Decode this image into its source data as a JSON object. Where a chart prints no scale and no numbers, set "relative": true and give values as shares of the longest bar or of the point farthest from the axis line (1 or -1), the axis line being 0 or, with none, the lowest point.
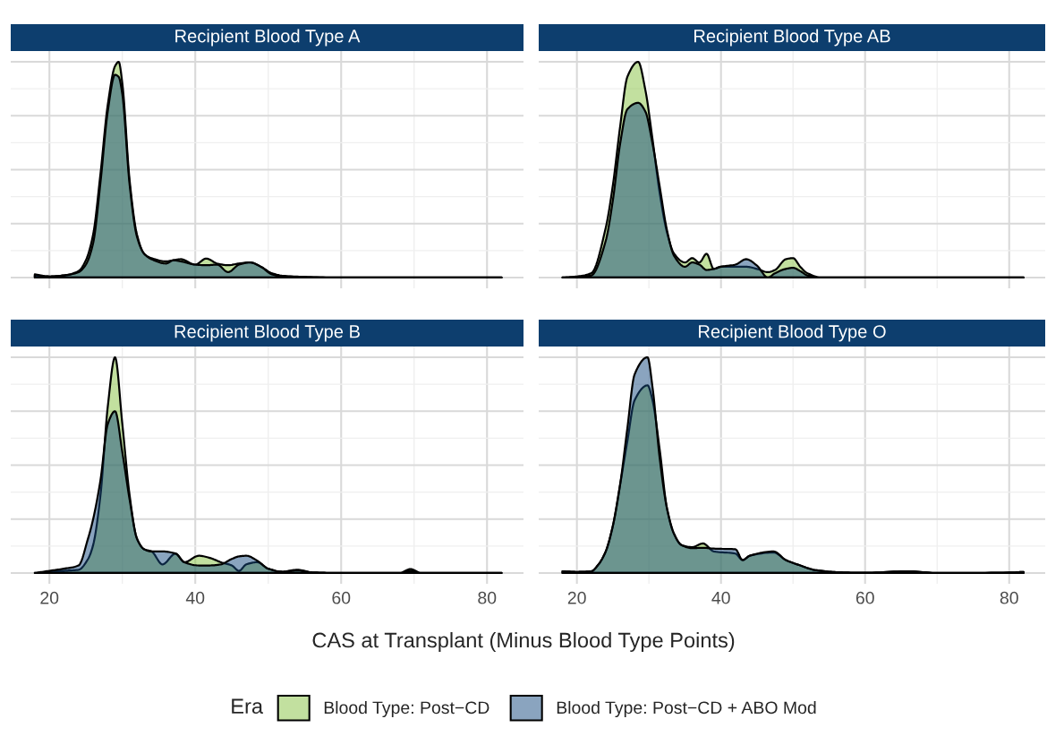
{
  "chart_data": [
    {
      "type": "area",
      "title": "Recipient Blood Type A",
      "relative": true,
      "xlim": [
        14.7,
        85
      ],
      "xticks": [
        20,
        40,
        60,
        80
      ],
      "tick_labels": false,
      "grid": true,
      "legend": "bottom",
      "legend_title": "Era",
      "series": [
        {
          "name": "Blood Type: Post−CD",
          "color": "#85c140",
          "x": [
            18,
            20,
            22,
            24,
            25,
            26,
            27,
            28,
            29,
            29.5,
            30,
            31,
            32,
            33,
            34,
            36,
            37,
            38,
            40,
            41.5,
            43,
            44.5,
            46,
            47.5,
            49,
            50.5,
            52,
            55,
            60,
            70,
            82
          ],
          "values": [
            0.01,
            0.005,
            0.01,
            0.03,
            0.08,
            0.2,
            0.48,
            0.8,
            0.98,
            1.0,
            0.9,
            0.45,
            0.2,
            0.11,
            0.09,
            0.075,
            0.08,
            0.085,
            0.06,
            0.088,
            0.065,
            0.057,
            0.065,
            0.07,
            0.05,
            0.02,
            0.008,
            0.003,
            0,
            0,
            0
          ]
        },
        {
          "name": "Blood Type: Post−CD + ABO Mod",
          "color": "#164a7f",
          "x": [
            18,
            20,
            22,
            24,
            25,
            26,
            27,
            28,
            29,
            29.5,
            30,
            31,
            32,
            33,
            34,
            36,
            37,
            38,
            40,
            41.5,
            43,
            44.5,
            46,
            47.5,
            49,
            50.5,
            52,
            55,
            60,
            70,
            82
          ],
          "values": [
            0.015,
            0.005,
            0.01,
            0.025,
            0.06,
            0.16,
            0.44,
            0.77,
            0.94,
            0.93,
            0.85,
            0.43,
            0.19,
            0.11,
            0.085,
            0.065,
            0.08,
            0.075,
            0.06,
            0.057,
            0.06,
            0.025,
            0.06,
            0.07,
            0.05,
            0.015,
            0.006,
            0.002,
            0,
            0,
            0
          ]
        }
      ]
    },
    {
      "type": "area",
      "title": "Recipient Blood Type AB",
      "relative": true,
      "xlim": [
        14.7,
        85
      ],
      "xticks": [
        20,
        40,
        60,
        80
      ],
      "tick_labels": false,
      "grid": true,
      "legend": "bottom",
      "series": [
        {
          "name": "Blood Type: Post−CD",
          "color": "#85c140",
          "x": [
            18,
            20,
            22,
            24,
            25,
            26,
            27,
            28.5,
            29.5,
            30.5,
            31.5,
            32.5,
            33.5,
            35,
            36,
            37,
            38,
            39,
            40,
            42,
            43.5,
            45,
            46.5,
            47.5,
            49,
            50,
            51,
            52,
            54,
            60,
            70,
            82
          ],
          "values": [
            0,
            0.005,
            0.02,
            0.23,
            0.43,
            0.7,
            0.93,
            1.0,
            0.87,
            0.64,
            0.39,
            0.21,
            0.11,
            0.07,
            0.09,
            0.07,
            0.11,
            0.04,
            0.05,
            0.05,
            0.05,
            0.04,
            0.025,
            0.035,
            0.085,
            0.09,
            0.05,
            0.02,
            0,
            0,
            0,
            0
          ]
        },
        {
          "name": "Blood Type: Post−CD + ABO Mod",
          "color": "#164a7f",
          "x": [
            18,
            20,
            22,
            24,
            25,
            26,
            27,
            28.5,
            29.5,
            30.5,
            31.5,
            32.5,
            33.5,
            35,
            36,
            37,
            38,
            39,
            40,
            42,
            43.5,
            45,
            46.5,
            47.5,
            49,
            50,
            51,
            52,
            54,
            60,
            70,
            82
          ],
          "values": [
            0,
            0.002,
            0.01,
            0.17,
            0.36,
            0.62,
            0.78,
            0.81,
            0.77,
            0.62,
            0.42,
            0.22,
            0.1,
            0.05,
            0.07,
            0.06,
            0.035,
            0.04,
            0.05,
            0.06,
            0.085,
            0.055,
            0.0,
            0.02,
            0.04,
            0.045,
            0.03,
            0.01,
            0,
            0,
            0,
            0
          ]
        }
      ]
    },
    {
      "type": "area",
      "title": "Recipient Blood Type B",
      "relative": true,
      "xlim": [
        14.7,
        85
      ],
      "xticks": [
        20,
        40,
        60,
        80
      ],
      "tick_labels": "x",
      "grid": true,
      "legend": "bottom",
      "series": [
        {
          "name": "Blood Type: Post−CD",
          "color": "#85c140",
          "x": [
            18,
            20,
            22,
            24,
            25.3,
            26,
            27,
            28,
            29,
            30,
            31,
            32,
            33,
            34,
            35.5,
            37.3,
            38.5,
            40.5,
            42,
            43.5,
            45,
            46,
            47,
            48.5,
            50,
            52,
            54,
            56,
            60,
            68,
            69.5,
            71,
            82
          ],
          "values": [
            0,
            0.005,
            0.01,
            0.015,
            0.065,
            0.13,
            0.36,
            0.77,
            1.0,
            0.69,
            0.36,
            0.16,
            0.11,
            0.1,
            0.04,
            0.09,
            0.05,
            0.08,
            0.07,
            0.05,
            0.035,
            0.01,
            0.04,
            0.05,
            0.02,
            0.006,
            0.015,
            0.003,
            0,
            0,
            0.018,
            0,
            0
          ]
        },
        {
          "name": "Blood Type: Post−CD + ABO Mod",
          "color": "#164a7f",
          "x": [
            18,
            20,
            22,
            24,
            25.3,
            26,
            27,
            28,
            29,
            30,
            31,
            32,
            33,
            34,
            35.5,
            37.3,
            38.5,
            40.5,
            42,
            43.5,
            45,
            46,
            47,
            48.5,
            50,
            52,
            54,
            56,
            60,
            68,
            69.5,
            71,
            82
          ],
          "values": [
            0,
            0.01,
            0.02,
            0.035,
            0.16,
            0.25,
            0.43,
            0.69,
            0.75,
            0.56,
            0.34,
            0.16,
            0.11,
            0.1,
            0.1,
            0.09,
            0.05,
            0.035,
            0.035,
            0.04,
            0.065,
            0.077,
            0.08,
            0.057,
            0.02,
            0.006,
            0.012,
            0.003,
            0,
            0,
            0.01,
            0,
            0
          ]
        }
      ]
    },
    {
      "type": "area",
      "title": "Recipient Blood Type O",
      "relative": true,
      "xlim": [
        14.7,
        85
      ],
      "xticks": [
        20,
        40,
        60,
        80
      ],
      "tick_labels": "x",
      "grid": true,
      "xlabel": "CAS at Transplant (Minus Blood Type Points)",
      "legend": "bottom",
      "series": [
        {
          "name": "Blood Type: Post−CD",
          "color": "#85c140",
          "x": [
            18,
            20,
            22,
            23,
            24,
            25,
            26,
            27,
            28,
            29.8,
            30.5,
            31.5,
            32.5,
            33.5,
            34.5,
            36,
            37.5,
            39,
            42,
            43,
            44,
            47.3,
            49,
            51,
            53,
            56,
            60,
            66,
            70,
            80,
            82
          ],
          "values": [
            0.008,
            0.005,
            0.008,
            0.04,
            0.1,
            0.22,
            0.41,
            0.61,
            0.8,
            0.87,
            0.8,
            0.57,
            0.3,
            0.18,
            0.13,
            0.12,
            0.137,
            0.1,
            0.09,
            0.06,
            0.08,
            0.095,
            0.06,
            0.035,
            0.014,
            0.004,
            0.001,
            0.008,
            0,
            0.002,
            0.005
          ]
        },
        {
          "name": "Blood Type: Post−CD + ABO Mod",
          "color": "#164a7f",
          "x": [
            18,
            20,
            22,
            23,
            24,
            25,
            26,
            27,
            28,
            29.8,
            30.5,
            31.5,
            32.5,
            33.5,
            34.5,
            36,
            37.5,
            39,
            42,
            43,
            44,
            47.3,
            49,
            51,
            53,
            56,
            60,
            66,
            70,
            80,
            82
          ],
          "values": [
            0.008,
            0.005,
            0.008,
            0.04,
            0.1,
            0.22,
            0.41,
            0.67,
            0.92,
            1.0,
            0.86,
            0.53,
            0.3,
            0.18,
            0.13,
            0.115,
            0.117,
            0.113,
            0.11,
            0.06,
            0.08,
            0.1,
            0.06,
            0.035,
            0.014,
            0.004,
            0.001,
            0.008,
            0,
            0.002,
            0.005
          ]
        }
      ]
    }
  ]
}
